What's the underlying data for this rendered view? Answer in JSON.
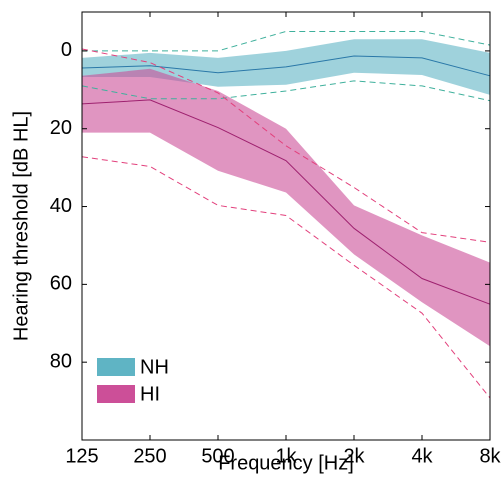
{
  "chart_data": {
    "type": "band-line",
    "x_label": "Frequency [Hz]",
    "y_label": "Hearing threshold [dB HL]",
    "categories": [
      "125",
      "250",
      "500",
      "1k",
      "2k",
      "4k",
      "8k"
    ],
    "ylim": [
      -10,
      100
    ],
    "y_reversed": true,
    "yticks": [
      0,
      20,
      40,
      60,
      80
    ],
    "legend_position": "lower-left",
    "series": [
      {
        "name": "NH",
        "color": "#2a78a8",
        "band_color": "#5fb4c4",
        "range_color": "#3fb09c",
        "values": [
          4.4,
          3.8,
          5.6,
          4.1,
          1.3,
          1.8,
          6.4
        ],
        "lower": [
          1.8,
          0.5,
          1.8,
          0,
          -3,
          -3,
          0.5
        ],
        "upper": [
          6.7,
          6.7,
          9.2,
          8.7,
          5.6,
          6.2,
          11.3
        ],
        "min": [
          0,
          0,
          0,
          -5,
          -5,
          -5,
          -1.5
        ],
        "max": [
          9,
          12.3,
          12.3,
          10.3,
          7.7,
          9,
          12.8
        ]
      },
      {
        "name": "HI",
        "color": "#9e216f",
        "band_color": "#cc4f98",
        "range_color": "#e2407c",
        "values": [
          13.6,
          12.6,
          19.7,
          28.2,
          45.6,
          58.5,
          65.1
        ],
        "lower": [
          6.4,
          4.6,
          10.3,
          20,
          39.7,
          47.4,
          54.4
        ],
        "upper": [
          21,
          21,
          30.8,
          36.4,
          52.3,
          64.6,
          75.9
        ],
        "min": [
          -0.5,
          3,
          10.8,
          24.4,
          35.1,
          46.7,
          49.2
        ],
        "max": [
          27.2,
          29.7,
          39.7,
          42.3,
          55.1,
          67.4,
          89.2
        ]
      }
    ]
  }
}
